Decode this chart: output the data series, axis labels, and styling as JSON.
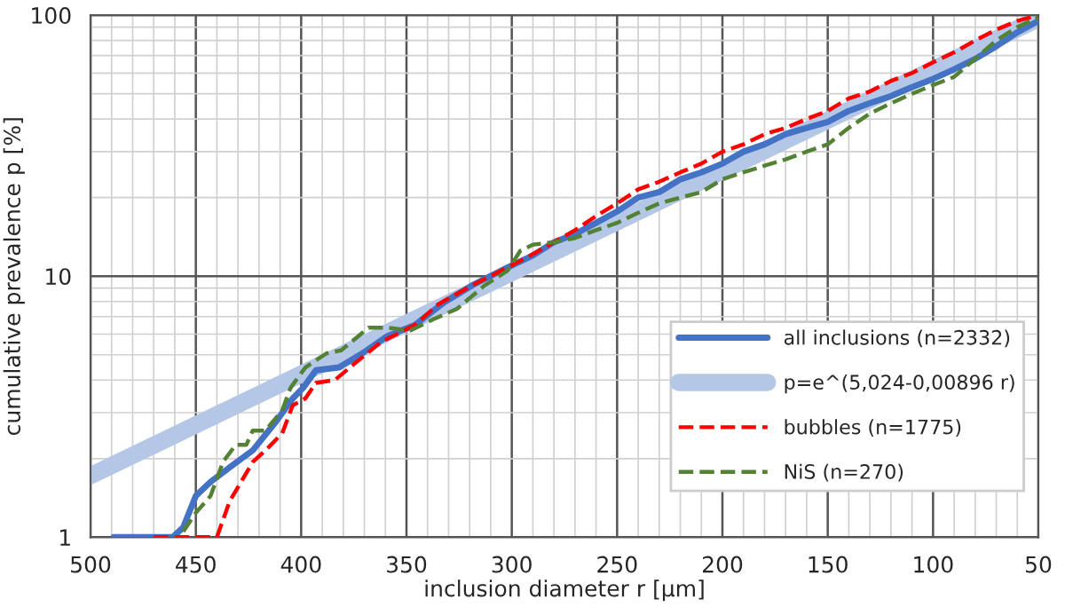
{
  "chart_data": {
    "type": "line",
    "xlabel": "inclusion diameter r [µm]",
    "ylabel": "cumulative prevalence p [%]",
    "xlim": [
      500,
      50
    ],
    "xticks": [
      500,
      450,
      400,
      350,
      300,
      250,
      200,
      150,
      100,
      50
    ],
    "ylim": [
      1,
      100
    ],
    "yticks": [
      1,
      10,
      100
    ],
    "log": "y",
    "grid": true,
    "legend": "right",
    "marker": "none",
    "series": [
      {
        "name": "all inclusions (n=2332)",
        "color": "#4472c4",
        "line_style": "solid",
        "x": [
          489,
          461,
          456,
          450,
          443,
          434,
          423,
          412,
          404,
          399,
          393,
          382,
          371,
          359,
          346,
          332,
          318,
          302,
          290,
          280,
          270,
          260,
          250,
          240,
          230,
          220,
          210,
          200,
          190,
          180,
          170,
          160,
          150,
          140,
          130,
          120,
          110,
          100,
          90,
          80,
          70,
          60,
          50
        ],
        "values": [
          1,
          1,
          1.09,
          1.44,
          1.63,
          1.85,
          2.15,
          2.77,
          3.4,
          3.74,
          4.36,
          4.47,
          5.06,
          5.9,
          6.5,
          7.95,
          9.3,
          10.8,
          12,
          13.5,
          14.5,
          16,
          17.7,
          20,
          21,
          23.5,
          25,
          27,
          30,
          32,
          35,
          37,
          39,
          43,
          46,
          49,
          53,
          57,
          62,
          68,
          76,
          86,
          95
        ]
      },
      {
        "name": "p=e^(5,024-0,00896 r)",
        "color": "#b4c7e7",
        "line_style": "solid",
        "x": [
          500,
          50
        ],
        "values": [
          1.72,
          97
        ]
      },
      {
        "name": "bubbles (n=1775)",
        "color": "#ff0000",
        "line_style": "dashed",
        "x": [
          470,
          440,
          434,
          423,
          417,
          409,
          404,
          398,
          393,
          384,
          375,
          362,
          346,
          335,
          318,
          302,
          292,
          280,
          270,
          260,
          250,
          240,
          230,
          220,
          210,
          200,
          190,
          180,
          170,
          160,
          150,
          140,
          130,
          120,
          110,
          100,
          90,
          80,
          70,
          60,
          50
        ],
        "values": [
          1,
          1,
          1.37,
          1.94,
          2.15,
          2.5,
          3.2,
          3.4,
          3.9,
          4.0,
          4.6,
          5.6,
          6.5,
          7.8,
          9.3,
          10.8,
          11.9,
          13.5,
          15,
          17,
          19,
          21.5,
          23,
          25,
          27,
          30,
          32,
          35,
          37,
          40,
          43,
          48,
          51,
          56,
          60,
          66,
          72,
          80,
          88,
          95,
          100
        ]
      },
      {
        "name": "NiS (n=270)",
        "color": "#548235",
        "line_style": "dashed",
        "x": [
          456,
          450,
          443,
          437,
          431,
          426,
          423,
          417,
          409,
          405,
          398,
          388,
          381,
          368,
          359,
          348,
          337,
          326,
          313,
          302,
          296,
          290,
          280,
          270,
          260,
          250,
          240,
          230,
          220,
          210,
          200,
          190,
          180,
          170,
          160,
          150,
          140,
          130,
          120,
          110,
          100,
          90,
          80,
          70,
          60,
          50
        ],
        "values": [
          1.05,
          1.24,
          1.44,
          1.95,
          2.26,
          2.26,
          2.56,
          2.56,
          3.06,
          3.74,
          4.47,
          5.06,
          5.2,
          6.35,
          6.35,
          6.2,
          6.85,
          7.5,
          9.2,
          10.5,
          12.5,
          13.2,
          13.5,
          14,
          15,
          16,
          17.5,
          19,
          20,
          21,
          23.5,
          25,
          26.5,
          28,
          30,
          32,
          37,
          42,
          46,
          50,
          54,
          58,
          68,
          80,
          90,
          98
        ]
      }
    ]
  }
}
